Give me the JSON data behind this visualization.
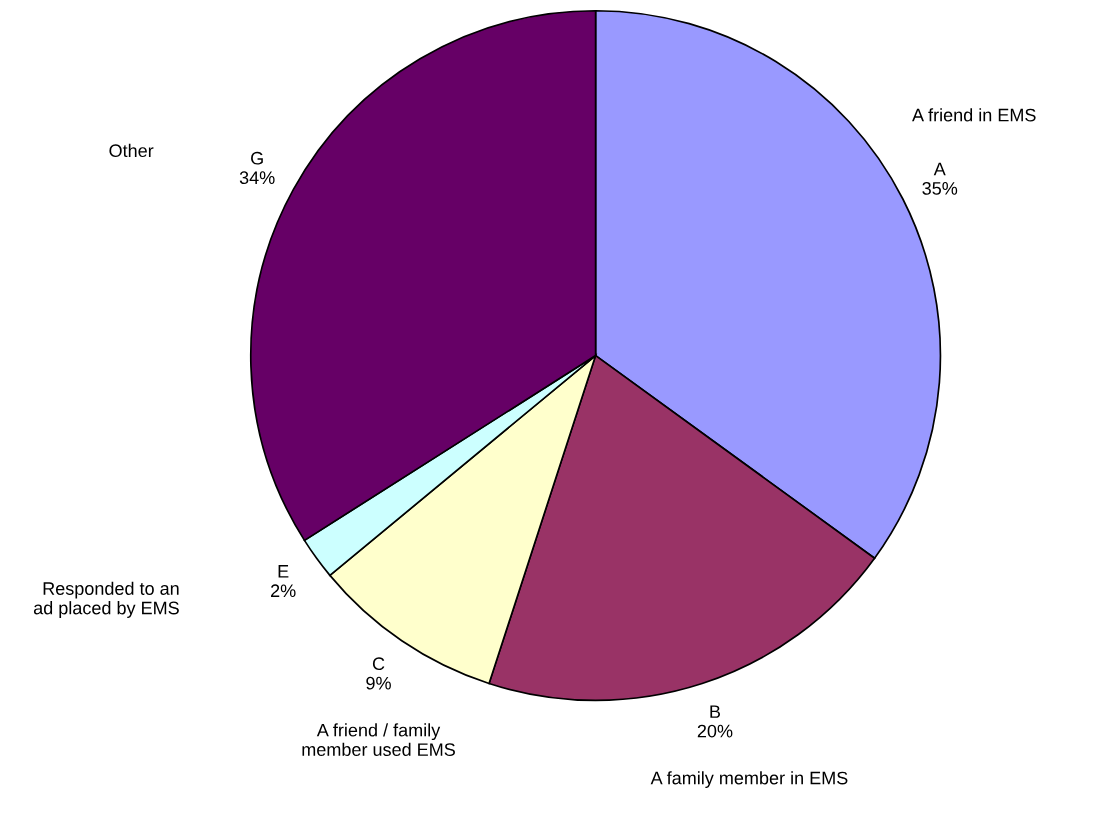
{
  "chart_data": {
    "type": "pie",
    "categories": [
      "A",
      "B",
      "C",
      "E",
      "G"
    ],
    "values": [
      35,
      20,
      9,
      2,
      34
    ],
    "value_labels": [
      "35%",
      "20%",
      "9%",
      "2%",
      "34%"
    ],
    "colors": [
      "#9999ff",
      "#993366",
      "#ffffcc",
      "#ccffff",
      "#660066"
    ],
    "annotations": [
      "A friend in EMS",
      "A family member in EMS",
      "A friend / family\nmember used EMS",
      "Responded to an\nad placed by EMS",
      "Other"
    ],
    "legend": false
  }
}
